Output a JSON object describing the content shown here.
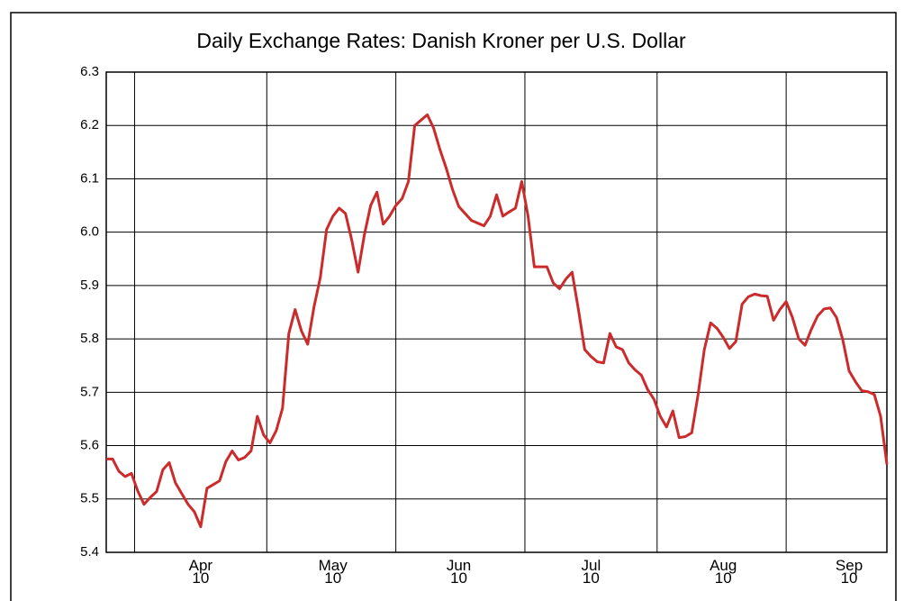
{
  "chart_data": {
    "type": "line",
    "title": "Daily Exchange Rates: Danish Kroner per U.S. Dollar",
    "categories": [
      null,
      null,
      null,
      null,
      null,
      null,
      null,
      null,
      null,
      null,
      null,
      null,
      null,
      null,
      null,
      "Apr\n10",
      null,
      null,
      null,
      null,
      null,
      null,
      null,
      null,
      null,
      null,
      null,
      null,
      null,
      null,
      null,
      null,
      null,
      null,
      null,
      null,
      "May\n10",
      null,
      null,
      null,
      null,
      null,
      null,
      null,
      null,
      null,
      null,
      null,
      null,
      null,
      null,
      null,
      null,
      null,
      null,
      null,
      "Jun\n10",
      null,
      null,
      null,
      null,
      null,
      null,
      null,
      null,
      null,
      null,
      null,
      null,
      null,
      null,
      null,
      null,
      null,
      null,
      null,
      null,
      "Jul\n10",
      null,
      null,
      null,
      null,
      null,
      null,
      null,
      null,
      null,
      null,
      null,
      null,
      null,
      null,
      null,
      null,
      null,
      null,
      null,
      null,
      "Aug\n10",
      null,
      null,
      null,
      null,
      null,
      null,
      null,
      null,
      null,
      null,
      null,
      null,
      null,
      null,
      null,
      null,
      null,
      null,
      null,
      "Sep\n10",
      null,
      null,
      null,
      null,
      null,
      null
    ],
    "series": [
      {
        "color": "#cc2b2b",
        "values": [
          5.575,
          5.575,
          5.552,
          5.542,
          5.548,
          5.515,
          5.49,
          5.503,
          5.514,
          5.555,
          5.568,
          5.53,
          5.51,
          5.49,
          5.476,
          5.448,
          5.52,
          5.527,
          5.534,
          5.57,
          5.59,
          5.573,
          5.578,
          5.59,
          5.655,
          5.62,
          5.605,
          5.628,
          5.67,
          5.81,
          5.855,
          5.815,
          5.79,
          5.86,
          5.915,
          6.005,
          6.03,
          6.045,
          6.035,
          5.985,
          5.925,
          5.995,
          6.05,
          6.075,
          6.015,
          6.03,
          6.05,
          6.063,
          6.095,
          6.2,
          6.21,
          6.22,
          6.195,
          6.155,
          6.12,
          6.08,
          6.048,
          6.035,
          6.022,
          6.017,
          6.012,
          6.03,
          6.07,
          6.03,
          6.038,
          6.045,
          6.095,
          6.03,
          5.935,
          5.935,
          5.935,
          5.905,
          5.894,
          5.912,
          5.925,
          5.855,
          5.78,
          5.767,
          5.757,
          5.755,
          5.81,
          5.785,
          5.78,
          5.755,
          5.742,
          5.732,
          5.705,
          5.687,
          5.655,
          5.635,
          5.665,
          5.615,
          5.617,
          5.624,
          5.695,
          5.78,
          5.83,
          5.82,
          5.803,
          5.782,
          5.795,
          5.865,
          5.879,
          5.884,
          5.881,
          5.88,
          5.835,
          5.855,
          5.87,
          5.84,
          5.8,
          5.788,
          5.818,
          5.843,
          5.856,
          5.858,
          5.84,
          5.798,
          5.74,
          5.72,
          5.703,
          5.701,
          5.696,
          5.655,
          5.565
        ]
      }
    ],
    "ylim": [
      5.4,
      6.3
    ],
    "yticks": [
      5.4,
      5.5,
      5.6,
      5.7,
      5.8,
      5.9,
      {
        "value": 6,
        "label": "6.0"
      },
      6.1,
      6.2,
      6.3
    ],
    "grid": true
  }
}
